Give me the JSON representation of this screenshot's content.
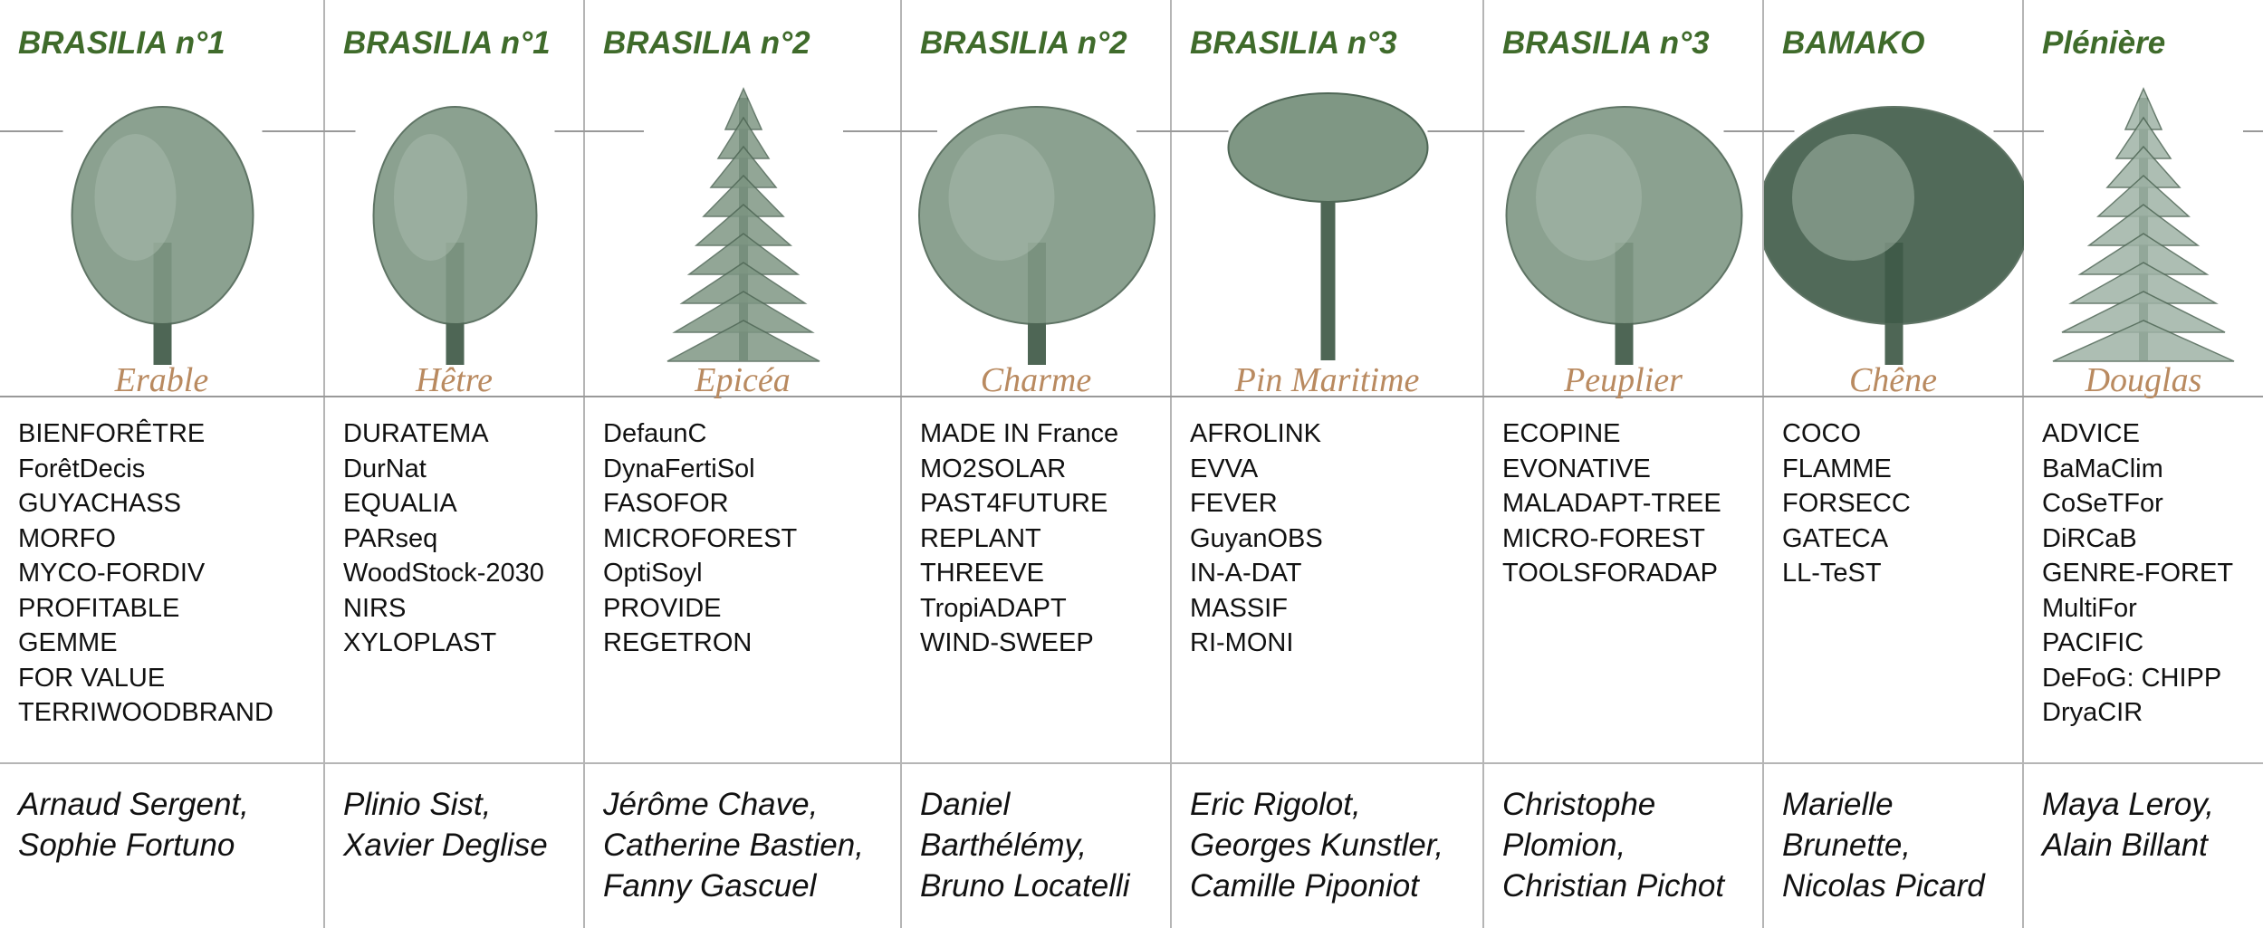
{
  "columns": [
    {
      "room": "BRASILIA n°1",
      "tree": "Erable",
      "projects": [
        "BIENFORÊTRE",
        "ForêtDecis",
        "GUYACHASS",
        "MORFO",
        "MYCO-FORDIV",
        "PROFITABLE",
        "GEMME",
        "FOR VALUE",
        "TERRIWOODBRAND"
      ],
      "chairs": [
        "Arnaud Sergent,",
        "Sophie Fortuno"
      ]
    },
    {
      "room": "BRASILIA n°1",
      "tree": "Hêtre",
      "projects": [
        "DURATEMA",
        "DurNat",
        "EQUALIA",
        "PARseq",
        "WoodStock-2030",
        "NIRS",
        "XYLOPLAST"
      ],
      "chairs": [
        "Plinio Sist,",
        "Xavier Deglise"
      ]
    },
    {
      "room": "BRASILIA n°2",
      "tree": "Epicéa",
      "projects": [
        "DefaunC",
        "DynaFertiSol",
        "FASOFOR",
        "MICROFOREST",
        "OptiSoyl",
        "PROVIDE",
        "REGETRON"
      ],
      "chairs": [
        "Jérôme Chave,",
        "Catherine Bastien,",
        "Fanny Gascuel"
      ]
    },
    {
      "room": "BRASILIA n°2",
      "tree": "Charme",
      "projects": [
        "MADE IN France",
        "MO2SOLAR",
        "PAST4FUTURE",
        "REPLANT",
        "THREEVE",
        "TropiADAPT",
        "WIND-SWEEP"
      ],
      "chairs": [
        "Daniel",
        "Barthélémy,",
        "Bruno Locatelli"
      ]
    },
    {
      "room": "BRASILIA n°3",
      "tree": "Pin Maritime",
      "projects": [
        "AFROLINK",
        "EVVA",
        "FEVER",
        "GuyanOBS",
        "IN-A-DAT",
        "MASSIF",
        "RI-MONI"
      ],
      "chairs": [
        "Eric Rigolot,",
        "Georges Kunstler,",
        "Camille Piponiot"
      ]
    },
    {
      "room": "BRASILIA n°3",
      "tree": "Peuplier",
      "projects": [
        "ECOPINE",
        "EVONATIVE",
        "MALADAPT-TREE",
        "MICRO-FOREST",
        "TOOLSFORADAP"
      ],
      "chairs": [
        "Christophe",
        "Plomion,",
        "Christian Pichot"
      ]
    },
    {
      "room": "BAMAKO",
      "tree": "Chêne",
      "projects": [
        "COCO",
        "FLAMME",
        "FORSECC",
        "GATECA",
        "LL-TeST"
      ],
      "chairs": [
        "Marielle",
        "Brunette,",
        "Nicolas Picard"
      ]
    },
    {
      "room": "Plénière",
      "tree": "Douglas",
      "projects": [
        "ADVICE",
        "BaMaClim",
        "CoSeTFor",
        "DiRCaB",
        "GENRE-FORET",
        "MultiFor",
        "PACIFIC",
        "DeFoG: CHIPP",
        "DryaCIR"
      ],
      "chairs": [
        "Maya Leroy,",
        "Alain Billant"
      ]
    }
  ]
}
